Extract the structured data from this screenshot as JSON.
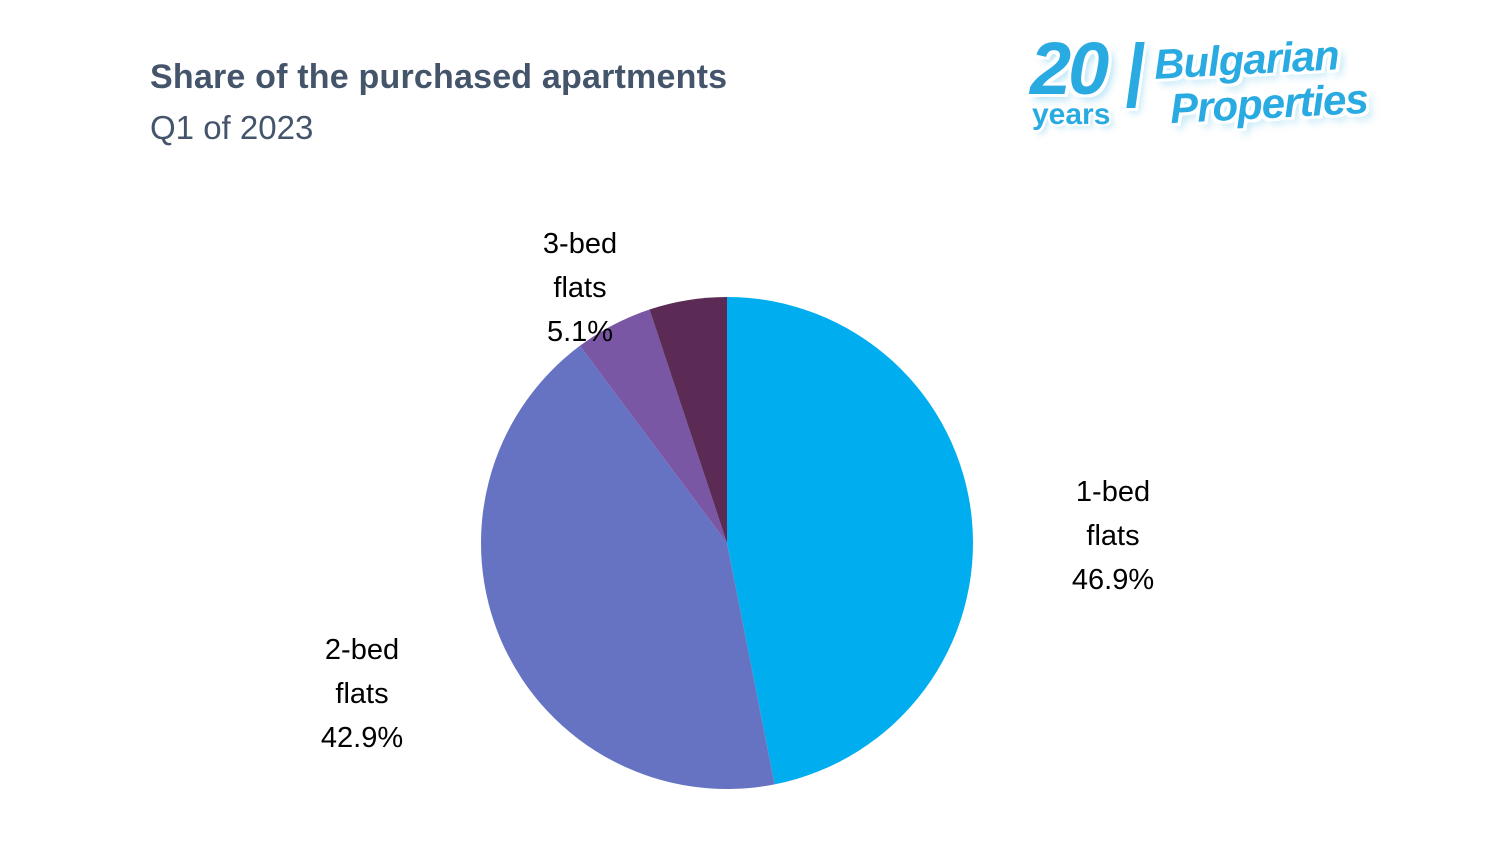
{
  "header": {
    "title": "Share of the purchased apartments",
    "subtitle": "Q1 of 2023",
    "title_color": "#44546A"
  },
  "logo": {
    "number": "20",
    "years": "years",
    "brand_line1": "Bulgarian",
    "brand_line2": "Properties",
    "color": "#29ABE2"
  },
  "chart_data": {
    "type": "pie",
    "title": "Share of the purchased apartments — Q1 of 2023",
    "unit": "%",
    "direction": "clockwise",
    "start_angle_deg": 0,
    "legend_position": "none",
    "slices": [
      {
        "label": "1-bed flats",
        "value": 46.9,
        "color": "#00AEEF",
        "label_lines": [
          "1-bed",
          "flats",
          "46.9%"
        ]
      },
      {
        "label": "2-bed flats",
        "value": 42.9,
        "color": "#6673C2",
        "label_lines": [
          "2-bed",
          "flats",
          "42.9%"
        ]
      },
      {
        "label": "3-bed flats",
        "value": 5.1,
        "color": "#7A57A4",
        "label_lines": [
          "3-bed",
          "flats",
          "5.1%"
        ]
      },
      {
        "label": "",
        "value": 5.1,
        "color": "#5B2A55",
        "label_lines": []
      }
    ]
  }
}
